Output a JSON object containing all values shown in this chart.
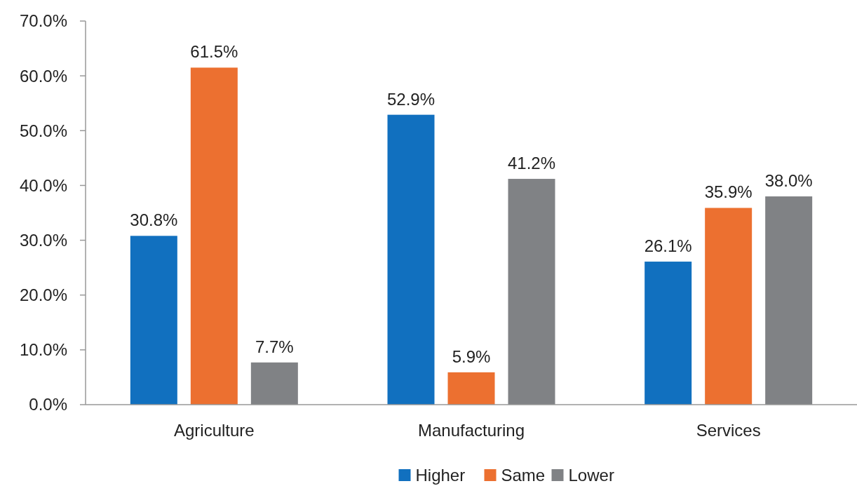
{
  "chart_data": {
    "type": "bar",
    "categories": [
      "Agriculture",
      "Manufacturing",
      "Services"
    ],
    "series": [
      {
        "name": "Higher",
        "color": "#1170bf",
        "values": [
          30.8,
          52.9,
          26.1
        ],
        "value_labels": [
          "30.8%",
          "52.9%",
          "26.1%"
        ]
      },
      {
        "name": "Same",
        "color": "#ec7030",
        "values": [
          61.5,
          5.9,
          35.9
        ],
        "value_labels": [
          "61.5%",
          "5.9%",
          "35.9%"
        ]
      },
      {
        "name": "Lower",
        "color": "#808285",
        "values": [
          7.7,
          41.2,
          38.0
        ],
        "value_labels": [
          "7.7%",
          "41.2%",
          "38.0%"
        ]
      }
    ],
    "ylim": [
      0,
      70
    ],
    "yticks": [
      {
        "value": 0,
        "label": "0.0%"
      },
      {
        "value": 10,
        "label": "10.0%"
      },
      {
        "value": 20,
        "label": "20.0%"
      },
      {
        "value": 30,
        "label": "30.0%"
      },
      {
        "value": 40,
        "label": "40.0%"
      },
      {
        "value": 50,
        "label": "50.0%"
      },
      {
        "value": 60,
        "label": "60.0%"
      },
      {
        "value": 70,
        "label": "70.0%"
      }
    ],
    "grid": false,
    "legend": "bottom"
  }
}
